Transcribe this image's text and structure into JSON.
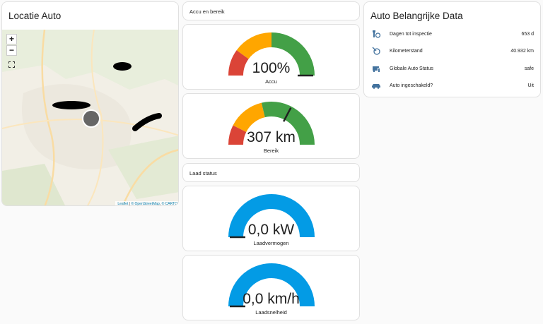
{
  "map": {
    "title": "Locatie Auto",
    "zoom_in": "+",
    "zoom_out": "−",
    "attribution": {
      "leaflet": "Leaflet",
      "osm": "© OpenStreetMap",
      "carto": "© CARTO"
    }
  },
  "accu_section": {
    "title": "Accu en bereik"
  },
  "laad_section": {
    "title": "Laad status"
  },
  "gauges": [
    {
      "name": "Accu",
      "value_text": "100%",
      "value": 100,
      "min": 0,
      "max": 100,
      "segments": [
        {
          "from": 0,
          "color": "#db4437"
        },
        {
          "from": 20,
          "color": "#ffa600"
        },
        {
          "from": 50,
          "color": "#43a047"
        }
      ]
    },
    {
      "name": "Bereik",
      "value_text": "307 km",
      "value": 307,
      "min": 0,
      "max": 470,
      "segments": [
        {
          "from": 0,
          "color": "#db4437"
        },
        {
          "from": 70,
          "color": "#ffa600"
        },
        {
          "from": 200,
          "color": "#43a047"
        }
      ]
    },
    {
      "name": "Laadvermogen",
      "value_text": "0,0 kW",
      "value": 0,
      "min": 0,
      "max": 11,
      "segments": [
        {
          "from": 0,
          "color": "#039be5"
        }
      ]
    },
    {
      "name": "Laadsnelheid",
      "value_text": "0,0 km/h",
      "value": 0,
      "min": 0,
      "max": 60,
      "segments": [
        {
          "from": 0,
          "color": "#039be5"
        }
      ]
    }
  ],
  "data_card": {
    "title": "Auto Belangrijke Data",
    "rows": [
      {
        "icon": "wrench-clock-icon",
        "label": "Dagen tot inspectie",
        "value": "653 d"
      },
      {
        "icon": "counter-icon",
        "label": "Kilometerstand",
        "value": "40.932 km"
      },
      {
        "icon": "car-info-icon",
        "label": "Globale Auto Status",
        "value": "safe"
      },
      {
        "icon": "car-icon",
        "label": "Auto ingeschakeld?",
        "value": "Uit"
      }
    ]
  },
  "colors": {
    "accent": "#44739e",
    "blue": "#039be5",
    "green": "#43a047",
    "orange": "#ffa600",
    "red": "#db4437"
  }
}
